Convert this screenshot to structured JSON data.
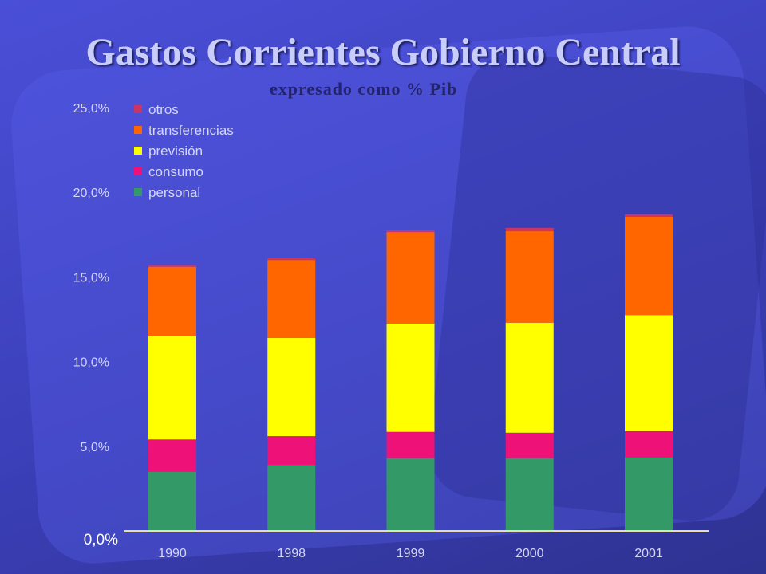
{
  "chart_data": {
    "type": "bar",
    "stacked": true,
    "title": "Gastos Corrientes Gobierno Central",
    "subtitle": "expresado como % Pib",
    "categories": [
      "1990",
      "1998",
      "1999",
      "2000",
      "2001"
    ],
    "y_tick_labels": [
      "0,0%",
      "5,0%",
      "10,0%",
      "15,0%",
      "20,0%",
      "25,0%"
    ],
    "ylim": [
      0,
      25
    ],
    "grid": false,
    "legend_position": "top-left",
    "series": [
      {
        "name": "personal",
        "color": "#339966",
        "values": [
          3.5,
          3.9,
          4.3,
          4.3,
          4.35
        ]
      },
      {
        "name": "consumo",
        "color": "#ee1177",
        "values": [
          1.9,
          1.7,
          1.55,
          1.5,
          1.55
        ]
      },
      {
        "name": "previsión",
        "color": "#ffff00",
        "values": [
          6.1,
          5.8,
          6.4,
          6.5,
          6.85
        ]
      },
      {
        "name": "transferencias",
        "color": "#ff6600",
        "values": [
          4.1,
          4.6,
          5.4,
          5.4,
          5.8
        ]
      },
      {
        "name": "otros",
        "color": "#cc3366",
        "values": [
          0.1,
          0.1,
          0.1,
          0.2,
          0.15
        ]
      }
    ]
  }
}
